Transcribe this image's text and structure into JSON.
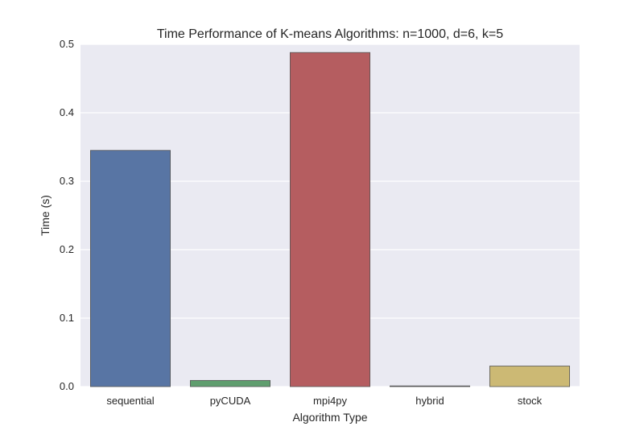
{
  "chart_data": {
    "type": "bar",
    "title": "Time Performance of K-means Algorithms: n=1000, d=6, k=5",
    "xlabel": "Algorithm Type",
    "ylabel": "Time (s)",
    "categories": [
      "sequential",
      "pyCUDA",
      "mpi4py",
      "hybrid",
      "stock"
    ],
    "values": [
      0.345,
      0.009,
      0.488,
      0.001,
      0.03
    ],
    "colors": [
      "#5875a4",
      "#5f9e6e",
      "#b55d60",
      "#857aab",
      "#ccb974"
    ],
    "ylim": [
      0,
      0.5
    ],
    "yticks": [
      "0.0",
      "0.1",
      "0.2",
      "0.3",
      "0.4",
      "0.5"
    ],
    "grid": true,
    "legend": "none",
    "background": "#eaeaf2"
  }
}
